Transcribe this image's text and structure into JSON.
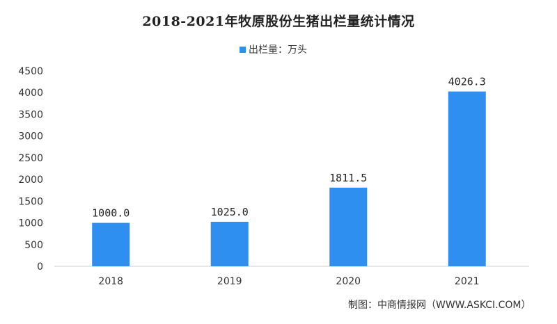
{
  "chart_data": {
    "type": "bar",
    "title": "2018-2021年牧原股份生猪出栏量统计情况",
    "categories": [
      "2018",
      "2019",
      "2020",
      "2021"
    ],
    "series": [
      {
        "name": "出栏量：万头",
        "values": [
          1000.0,
          1025.0,
          1811.5,
          4026.3
        ],
        "data_labels": [
          "1000.0",
          "1025.0",
          "1811.5",
          "4026.3"
        ],
        "color": "#2f8ff0"
      }
    ],
    "ylim": [
      0,
      4500
    ],
    "yticks": [
      "0",
      "500",
      "1000",
      "1500",
      "2000",
      "2500",
      "3000",
      "3500",
      "4000",
      "4500"
    ],
    "xlabel": "",
    "ylabel": "",
    "grid": false,
    "legend_position": "top-center"
  },
  "source_note": "制图：中商情报网（WWW.ASKCI.COM）"
}
